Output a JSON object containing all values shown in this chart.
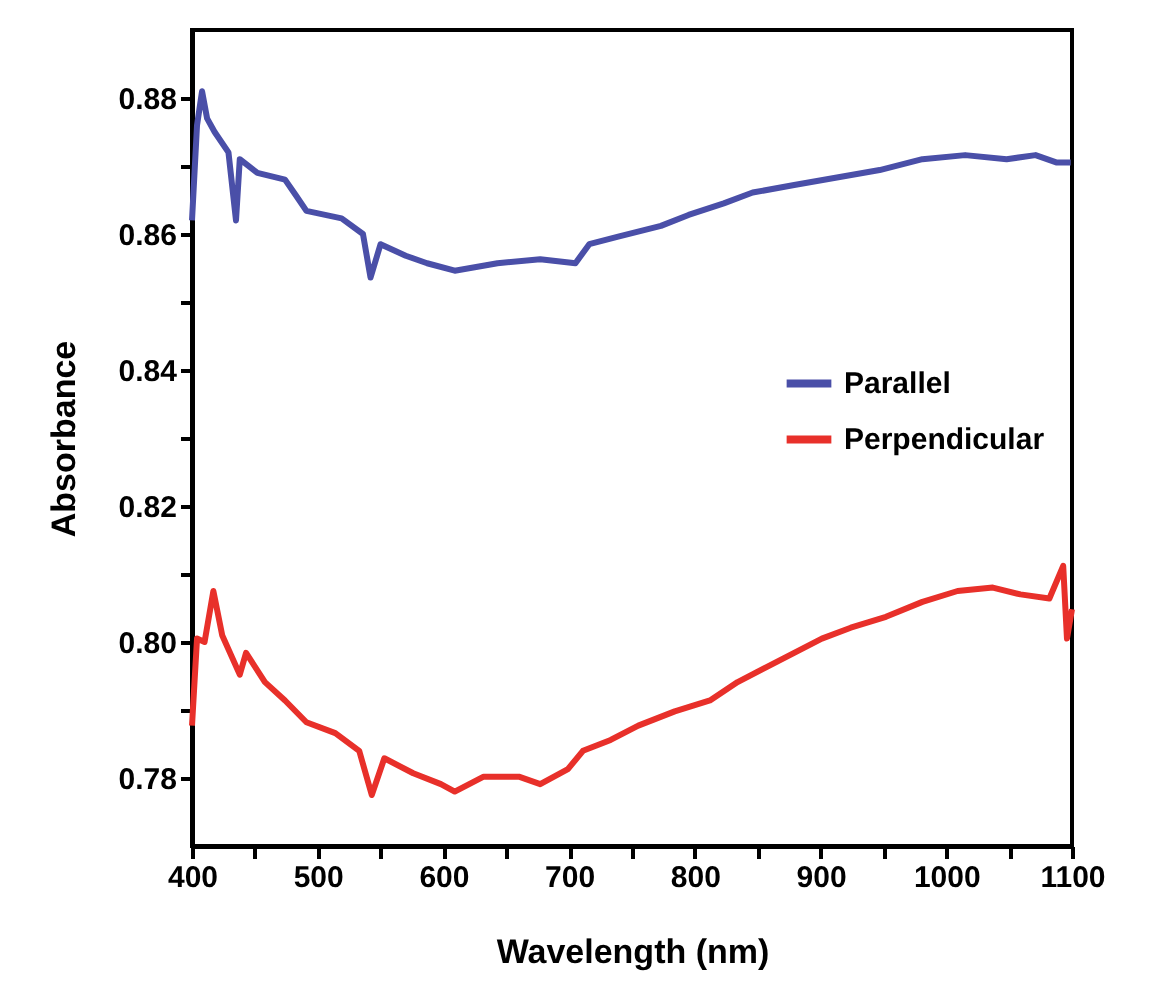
{
  "chart_data": {
    "type": "line",
    "xlabel": "Wavelength (nm)",
    "ylabel": "Absorbance",
    "xlim": [
      400,
      1100
    ],
    "ylim": [
      0.77,
      0.89
    ],
    "xticks": [
      400,
      {
        "value": 450,
        "label": null
      },
      500,
      {
        "value": 550,
        "label": null
      },
      600,
      {
        "value": 650,
        "label": null
      },
      700,
      {
        "value": 750,
        "label": null
      },
      800,
      {
        "value": 850,
        "label": null
      },
      900,
      {
        "value": 950,
        "label": null
      },
      1000,
      {
        "value": 1050,
        "label": null
      },
      1100
    ],
    "yticks": [
      {
        "value": 0.78,
        "label": "0.78"
      },
      {
        "value": 0.79,
        "label": null
      },
      {
        "value": 0.8,
        "label": "0.80"
      },
      {
        "value": 0.81,
        "label": null
      },
      {
        "value": 0.82,
        "label": "0.82"
      },
      {
        "value": 0.83,
        "label": null
      },
      {
        "value": 0.84,
        "label": "0.84"
      },
      {
        "value": 0.85,
        "label": null
      },
      {
        "value": 0.86,
        "label": "0.86"
      },
      {
        "value": 0.87,
        "label": null
      },
      {
        "value": 0.88,
        "label": "0.88"
      }
    ],
    "grid": false,
    "legend": "right",
    "series": [
      {
        "name": "Parallel",
        "color": "#4a4fa8",
        "x": [
          400,
          404,
          408,
          412,
          418,
          429,
          435,
          438,
          452,
          474,
          483,
          491,
          519,
          536,
          542,
          550,
          570,
          587,
          609,
          643,
          677,
          705,
          716,
          739,
          773,
          795,
          823,
          846,
          879,
          913,
          947,
          981,
          1015,
          1048,
          1071,
          1088,
          1099
        ],
        "values": [
          0.862,
          0.876,
          0.881,
          0.877,
          0.875,
          0.872,
          0.862,
          0.871,
          0.869,
          0.868,
          0.8656,
          0.8634,
          0.8623,
          0.86,
          0.8536,
          0.8585,
          0.8568,
          0.8557,
          0.8546,
          0.8557,
          0.8563,
          0.8557,
          0.8585,
          0.8596,
          0.8612,
          0.8628,
          0.8645,
          0.8661,
          0.8672,
          0.8683,
          0.8694,
          0.871,
          0.8716,
          0.871,
          0.8716,
          0.8705,
          0.8705
        ]
      },
      {
        "name": "Perpendicular",
        "color": "#e8302a",
        "x": [
          400,
          404,
          410,
          417,
          424,
          438,
          443,
          458,
          474,
          491,
          514,
          533,
          543,
          553,
          576,
          598,
          609,
          632,
          660,
          677,
          699,
          711,
          733,
          755,
          784,
          812,
          834,
          857,
          879,
          901,
          924,
          952,
          981,
          1009,
          1037,
          1059,
          1082,
          1093,
          1096,
          1100
        ],
        "values": [
          0.7877,
          0.8005,
          0.8,
          0.8075,
          0.801,
          0.7952,
          0.7984,
          0.7941,
          0.7914,
          0.7882,
          0.7866,
          0.784,
          0.7775,
          0.7829,
          0.7807,
          0.7791,
          0.778,
          0.7802,
          0.7802,
          0.7791,
          0.7813,
          0.784,
          0.7856,
          0.7877,
          0.7898,
          0.7914,
          0.7941,
          0.7963,
          0.7984,
          0.8005,
          0.8021,
          0.8037,
          0.8059,
          0.8075,
          0.808,
          0.807,
          0.8064,
          0.8112,
          0.8005,
          0.8048
        ]
      }
    ]
  }
}
